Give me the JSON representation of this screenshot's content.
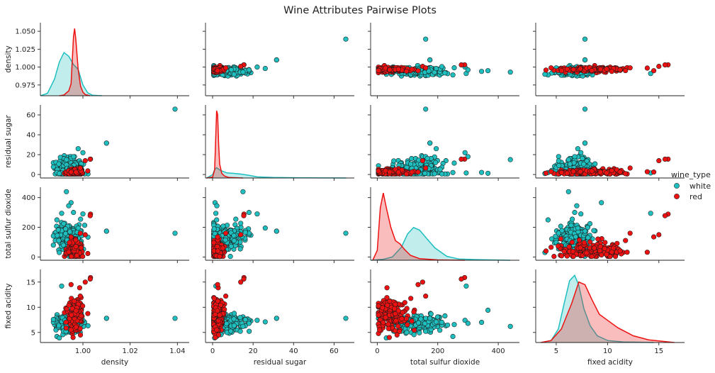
{
  "chart_data": {
    "type": "scatter",
    "title": "Wine Attributes Pairwise Plots",
    "variables": [
      "density",
      "residual sugar",
      "total sulfur dioxide",
      "fixed acidity"
    ],
    "legend": {
      "title": "wine_type",
      "placement": "right",
      "entries": [
        {
          "name": "white",
          "color": "#1fbfbf"
        },
        {
          "name": "red",
          "color": "#ee1111"
        }
      ]
    },
    "axes": {
      "density": {
        "lim": [
          0.982,
          1.045
        ],
        "ticks": [
          0.975,
          1.0,
          1.025,
          1.05
        ],
        "tick_labels": [
          "0.975",
          "1.000",
          "1.025",
          "1.050"
        ],
        "xticks": [
          1.0,
          1.02,
          1.04
        ],
        "xtick_labels": [
          "1.00",
          "1.02",
          "1.04"
        ]
      },
      "residual sugar": {
        "lim": [
          -3.5,
          70
        ],
        "ticks": [
          0,
          20,
          40,
          60
        ],
        "tick_labels": [
          "0",
          "20",
          "40",
          "60"
        ]
      },
      "total sulfur dioxide": {
        "lim": [
          -22,
          470
        ],
        "ticks": [
          0,
          200,
          400
        ],
        "tick_labels": [
          "0",
          "200",
          "400"
        ]
      },
      "fixed acidity": {
        "lim": [
          3,
          17.5
        ],
        "ticks": [
          5,
          10,
          15
        ],
        "tick_labels": [
          "5",
          "10",
          "15"
        ]
      }
    },
    "density_ylim": [
      0.96,
      1.062
    ],
    "series": [
      {
        "name": "white",
        "color": "#1fbfbf",
        "clusters": [
          {
            "center": [
              0.994,
              6.4,
              138,
              6.8
            ],
            "spread": [
              0.003,
              5.0,
              42,
              0.85
            ],
            "count": 180
          }
        ],
        "points": [
          {
            "density": 1.039,
            "residual sugar": 65.8,
            "total sulfur dioxide": 160,
            "fixed acidity": 7.8
          },
          {
            "density": 1.01,
            "residual sugar": 31.6,
            "total sulfur dioxide": 174,
            "fixed acidity": 7.8
          },
          {
            "density": 1.01,
            "residual sugar": 31.6,
            "total sulfur dioxide": 174,
            "fixed acidity": 7.8
          },
          {
            "density": 0.993,
            "residual sugar": 15.0,
            "total sulfur dioxide": 440,
            "fixed acidity": 6.2
          },
          {
            "density": 0.995,
            "residual sugar": 1.2,
            "total sulfur dioxide": 366,
            "fixed acidity": 9.4
          },
          {
            "density": 0.994,
            "residual sugar": 2.1,
            "total sulfur dioxide": 345,
            "fixed acidity": 7.0
          },
          {
            "density": 0.991,
            "residual sugar": 1.6,
            "total sulfur dioxide": 294,
            "fixed acidity": 14.2
          },
          {
            "density": 1.0,
            "residual sugar": 22.0,
            "total sulfur dioxide": 290,
            "fixed acidity": 7.4
          },
          {
            "density": 0.989,
            "residual sugar": 2.0,
            "total sulfur dioxide": 250,
            "fixed acidity": 4.2
          },
          {
            "density": 0.998,
            "residual sugar": 26.0,
            "total sulfur dioxide": 195,
            "fixed acidity": 7.1
          },
          {
            "density": 0.996,
            "residual sugar": 18.0,
            "total sulfur dioxide": 300,
            "fixed acidity": 6.8
          },
          {
            "density": 0.99,
            "residual sugar": 1.0,
            "total sulfur dioxide": 30,
            "fixed acidity": 3.9
          }
        ],
        "kde": {
          "density": {
            "x": [
              0.982,
              0.985,
              0.988,
              0.99,
              0.992,
              0.994,
              0.996,
              0.998,
              1.0,
              1.002,
              1.004,
              1.008
            ],
            "y": [
              0.0,
              0.2,
              1.4,
              2.8,
              3.6,
              3.3,
              2.6,
              2.2,
              0.9,
              0.25,
              0.05,
              0.0
            ]
          },
          "residual sugar": {
            "x": [
              -3,
              0,
              1,
              2,
              4,
              7,
              10,
              14,
              18,
              22,
              30,
              45,
              66
            ],
            "y": [
              0.0,
              0.35,
              0.9,
              1.1,
              0.8,
              0.55,
              0.5,
              0.42,
              0.28,
              0.12,
              0.05,
              0.02,
              0.0
            ]
          },
          "total sulfur dioxide": {
            "x": [
              -20,
              20,
              50,
              80,
              100,
              120,
              140,
              160,
              190,
              230,
              270,
              330,
              440
            ],
            "y": [
              0.0,
              0.03,
              0.1,
              0.4,
              0.8,
              1.0,
              0.92,
              0.7,
              0.38,
              0.12,
              0.04,
              0.02,
              0.0
            ]
          },
          "fixed acidity": {
            "x": [
              3.6,
              4.5,
              5.2,
              5.8,
              6.3,
              6.8,
              7.2,
              7.7,
              8.3,
              9.0,
              10.0,
              11.5,
              14.5
            ],
            "y": [
              0.0,
              0.03,
              0.2,
              0.6,
              0.92,
              1.0,
              0.85,
              0.5,
              0.25,
              0.1,
              0.03,
              0.01,
              0.0
            ]
          }
        }
      },
      {
        "name": "red",
        "color": "#ee1111",
        "clusters": [
          {
            "center": [
              0.9967,
              2.5,
              46,
              8.3
            ],
            "spread": [
              0.0017,
              1.4,
              32,
              1.7
            ],
            "count": 160
          }
        ],
        "points": [
          {
            "density": 1.0032,
            "residual sugar": 15.5,
            "total sulfur dioxide": 289,
            "fixed acidity": 15.9
          },
          {
            "density": 1.0031,
            "residual sugar": 15.4,
            "total sulfur dioxide": 278,
            "fixed acidity": 15.6
          },
          {
            "density": 1.001,
            "residual sugar": 13.9,
            "total sulfur dioxide": 150,
            "fixed acidity": 15.0
          },
          {
            "density": 0.9989,
            "residual sugar": 6.5,
            "total sulfur dioxide": 160,
            "fixed acidity": 12.2
          },
          {
            "density": 0.995,
            "residual sugar": 2.5,
            "total sulfur dioxide": 135,
            "fixed acidity": 14.5
          }
        ],
        "kde": {
          "density": {
            "x": [
              0.99,
              0.992,
              0.994,
              0.995,
              0.996,
              0.9965,
              0.997,
              0.998,
              0.999,
              1.0,
              1.001,
              1.003
            ],
            "y": [
              0.0,
              0.06,
              0.4,
              1.0,
              4.9,
              5.6,
              4.7,
              2.2,
              0.8,
              0.3,
              0.1,
              0.0
            ]
          },
          "residual sugar": {
            "x": [
              -3,
              0,
              1,
              1.5,
              2,
              2.5,
              3,
              3.5,
              4.5,
              6,
              8,
              15
            ],
            "y": [
              0.0,
              0.1,
              0.9,
              4.0,
              7.2,
              6.8,
              3.5,
              1.5,
              0.5,
              0.2,
              0.05,
              0.0
            ]
          },
          "total sulfur dioxide": {
            "x": [
              -15,
              0,
              10,
              20,
              30,
              45,
              60,
              75,
              90,
              110,
              140,
              200,
              290
            ],
            "y": [
              0.0,
              0.3,
              1.6,
              2.05,
              1.6,
              1.0,
              0.6,
              0.5,
              0.33,
              0.15,
              0.05,
              0.01,
              0.0
            ]
          },
          "fixed acidity": {
            "x": [
              3.5,
              4.5,
              5.5,
              6.5,
              7.2,
              7.8,
              8.5,
              9.2,
              10,
              11,
              12.5,
              14,
              16.5
            ],
            "y": [
              0.0,
              0.03,
              0.2,
              0.58,
              0.9,
              0.86,
              0.63,
              0.42,
              0.33,
              0.22,
              0.1,
              0.04,
              0.0
            ]
          }
        }
      }
    ]
  }
}
